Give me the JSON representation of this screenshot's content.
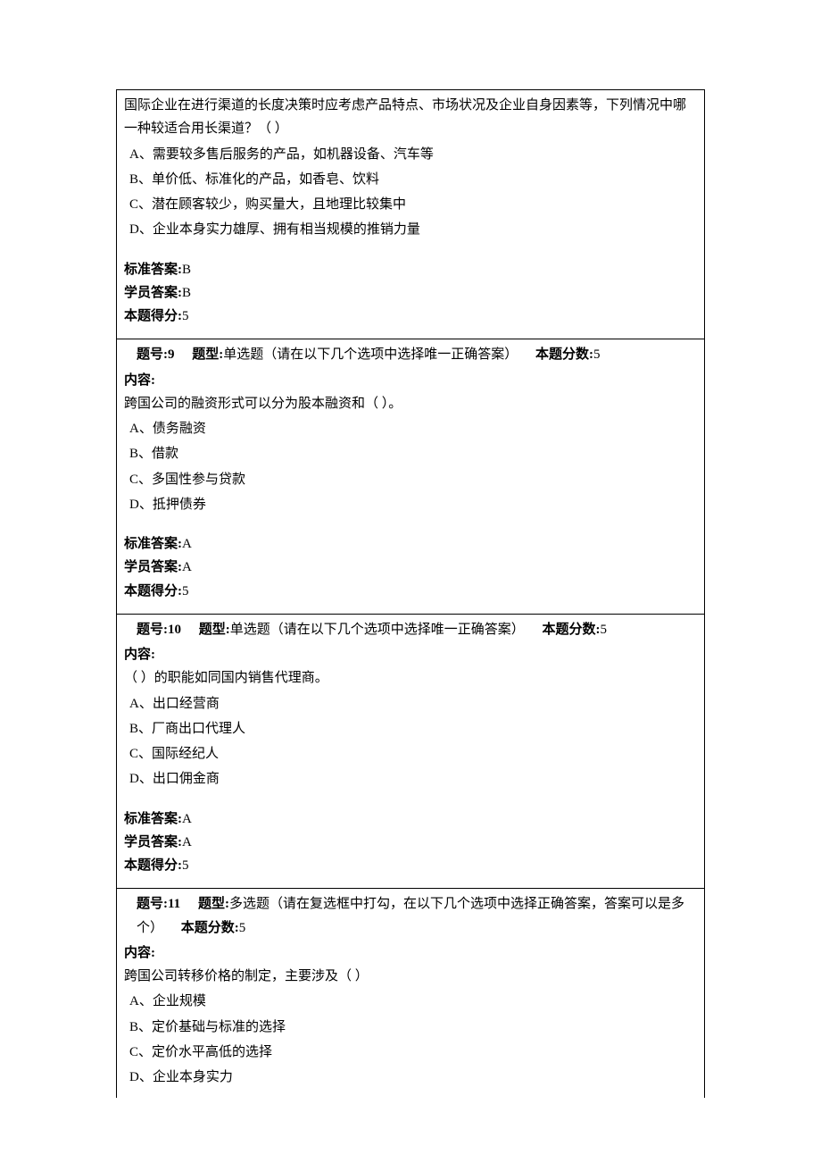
{
  "labels": {
    "question_number": "题号:",
    "question_type": "题型:",
    "question_score": "本题分数:",
    "content": "内容:",
    "standard_answer": "标准答案:",
    "student_answer": "学员答案:",
    "question_points": "本题得分:"
  },
  "questions": [
    {
      "id": "q8",
      "stem": "国际企业在进行渠道的长度决策时应考虑产品特点、市场状况及企业自身因素等，下列情况中哪一种较适合用长渠道？（ ）",
      "options": [
        "A、需要较多售后服务的产品，如机器设备、汽车等",
        "B、单价低、标准化的产品，如香皂、饮料",
        "C、潜在顾客较少，购买量大，且地理比较集中",
        "D、企业本身实力雄厚、拥有相当规模的推销力量"
      ],
      "standard_answer": "B",
      "student_answer": "B",
      "points_earned": "5"
    },
    {
      "id": "q9",
      "number": "9",
      "type": "单选题（请在以下几个选项中选择唯一正确答案）",
      "score": "5",
      "stem": "跨国公司的融资形式可以分为股本融资和（ ）。",
      "options": [
        "A、债务融资",
        "B、借款",
        "C、多国性参与贷款",
        "D、抵押债券"
      ],
      "standard_answer": "A",
      "student_answer": "A",
      "points_earned": "5"
    },
    {
      "id": "q10",
      "number": "10",
      "type": "单选题（请在以下几个选项中选择唯一正确答案）",
      "score": "5",
      "stem": "（ ）的职能如同国内销售代理商。",
      "options": [
        "A、出口经营商",
        "B、厂商出口代理人",
        "C、国际经纪人",
        "D、出口佣金商"
      ],
      "standard_answer": "A",
      "student_answer": "A",
      "points_earned": "5"
    },
    {
      "id": "q11",
      "number": "11",
      "type": "多选题（请在复选框中打勾，在以下几个选项中选择正确答案，答案可以是多个）",
      "score": "5",
      "stem": "跨国公司转移价格的制定，主要涉及（ ）",
      "options": [
        "A、企业规模",
        "B、定价基础与标准的选择",
        "C、定价水平高低的选择",
        "D、企业本身实力"
      ]
    }
  ]
}
